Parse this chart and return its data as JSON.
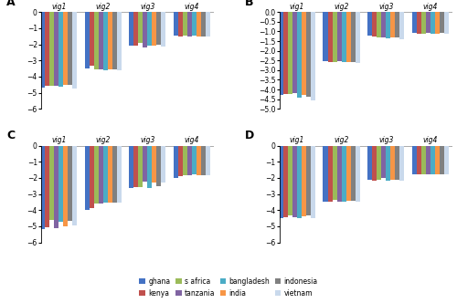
{
  "countries": [
    "ghana",
    "kenya",
    "s africa",
    "tanzania",
    "bangladesh",
    "india",
    "indonesia",
    "vietnam"
  ],
  "panel_A": {
    "title": "A",
    "vignettes": [
      "vig1",
      "vig2",
      "vig3",
      "vig4"
    ],
    "data": [
      [
        -4.7,
        -3.5,
        -2.05,
        -1.45
      ],
      [
        -4.55,
        -3.35,
        -2.1,
        -1.5
      ],
      [
        -4.55,
        -3.55,
        -1.9,
        -1.45
      ],
      [
        -4.55,
        -3.55,
        -2.2,
        -1.5
      ],
      [
        -4.6,
        -3.6,
        -2.1,
        -1.45
      ],
      [
        -4.5,
        -3.55,
        -2.05,
        -1.5
      ],
      [
        -4.5,
        -3.55,
        -2.0,
        -1.5
      ],
      [
        -4.75,
        -3.6,
        -2.15,
        -1.5
      ]
    ],
    "ylim": [
      -6,
      0
    ],
    "yticks": [
      0,
      -1,
      -2,
      -3,
      -4,
      -5,
      -6
    ]
  },
  "panel_B": {
    "title": "B",
    "vignettes": [
      "vig1",
      "vig2",
      "vig3",
      "vig4"
    ],
    "data": [
      [
        -4.3,
        -2.55,
        -1.2,
        -1.05
      ],
      [
        -4.25,
        -2.6,
        -1.25,
        -1.1
      ],
      [
        -4.25,
        -2.6,
        -1.3,
        -1.1
      ],
      [
        -4.2,
        -2.55,
        -1.3,
        -1.05
      ],
      [
        -4.4,
        -2.6,
        -1.35,
        -1.1
      ],
      [
        -4.3,
        -2.6,
        -1.3,
        -1.1
      ],
      [
        -4.35,
        -2.6,
        -1.3,
        -1.05
      ],
      [
        -4.55,
        -2.65,
        -1.4,
        -1.1
      ]
    ],
    "ylim": [
      -5,
      0
    ],
    "yticks": [
      0,
      -0.5,
      -1,
      -1.5,
      -2,
      -2.5,
      -3,
      -3.5,
      -4,
      -4.5,
      -5
    ]
  },
  "panel_C": {
    "title": "C",
    "vignettes": [
      "vig1",
      "vig2",
      "vig3",
      "vig4"
    ],
    "data": [
      [
        -5.2,
        -4.0,
        -2.6,
        -2.0
      ],
      [
        -5.05,
        -3.85,
        -2.55,
        -1.9
      ],
      [
        -4.6,
        -3.6,
        -2.55,
        -1.85
      ],
      [
        -5.1,
        -3.6,
        -2.25,
        -1.85
      ],
      [
        -4.7,
        -3.55,
        -2.65,
        -1.8
      ],
      [
        -5.0,
        -3.55,
        -2.3,
        -1.85
      ],
      [
        -4.65,
        -3.55,
        -2.5,
        -1.85
      ],
      [
        -4.95,
        -3.55,
        -2.3,
        -1.85
      ]
    ],
    "ylim": [
      -6,
      0
    ],
    "yticks": [
      0,
      -1,
      -2,
      -3,
      -4,
      -5,
      -6
    ]
  },
  "panel_D": {
    "title": "D",
    "vignettes": [
      "vig1",
      "vig2",
      "vig3",
      "vig4"
    ],
    "data": [
      [
        -4.5,
        -3.5,
        -2.1,
        -1.8
      ],
      [
        -4.45,
        -3.45,
        -2.15,
        -1.75
      ],
      [
        -4.3,
        -3.35,
        -2.1,
        -1.75
      ],
      [
        -4.45,
        -3.5,
        -2.0,
        -1.75
      ],
      [
        -4.5,
        -3.5,
        -2.2,
        -1.8
      ],
      [
        -4.4,
        -3.4,
        -2.1,
        -1.75
      ],
      [
        -4.35,
        -3.4,
        -2.1,
        -1.75
      ],
      [
        -4.5,
        -3.5,
        -2.15,
        -1.8
      ]
    ],
    "ylim": [
      -6,
      0
    ],
    "yticks": [
      0,
      -1,
      -2,
      -3,
      -4,
      -5,
      -6
    ]
  },
  "bar_colors": [
    "#4472C4",
    "#C0504D",
    "#9BBB59",
    "#8064A2",
    "#4BACC6",
    "#F79646",
    "#808080",
    "#C9D9EC"
  ],
  "legend_labels": [
    "ghana",
    "kenya",
    "s africa",
    "tanzania",
    "bangladesh",
    "india",
    "indonesia",
    "vietnam"
  ]
}
